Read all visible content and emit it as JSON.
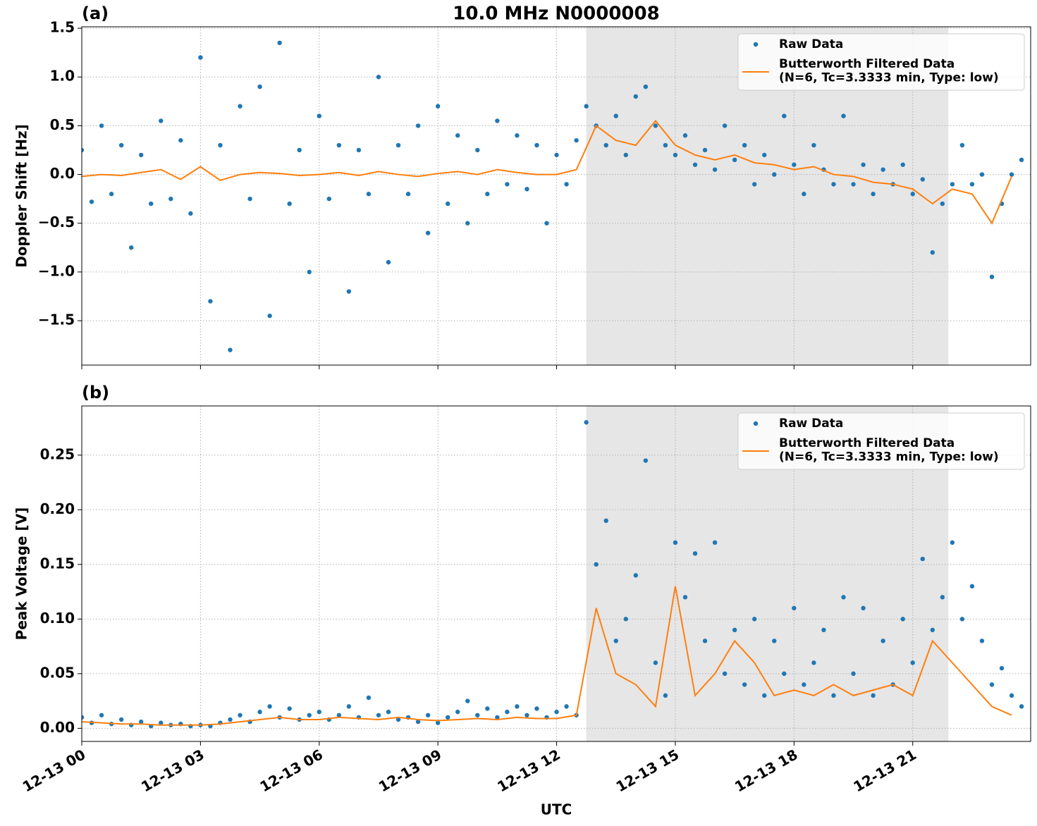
{
  "chart_data": [
    {
      "type": "scatter-line",
      "title": "10.0 MHz N0000008",
      "panel_label": "(a)",
      "ylabel": "Doppler Shift [Hz]",
      "xlim": [
        0,
        23.98
      ],
      "ylim": [
        -1.955,
        1.515
      ],
      "xticks": [
        0,
        3,
        6,
        9,
        12,
        15,
        18,
        21
      ],
      "xtick_labels": false,
      "yticks": [
        {
          "value": -1.5,
          "label": "−1.5"
        },
        {
          "value": -1.0,
          "label": "−1.0"
        },
        {
          "value": -0.5,
          "label": "−0.5"
        },
        {
          "value": 0,
          "label": "0.0"
        },
        0.5,
        {
          "value": 1.0,
          "label": "1.0"
        },
        1.5
      ],
      "grid": true,
      "legend": "upper right",
      "shade": [
        12.75,
        21.9
      ],
      "shade_color": "#e6e6e6",
      "series": [
        {
          "name": "Raw Data",
          "kind": "scatter",
          "color": "#1f77b4",
          "x": [
            0,
            0.25,
            0.5,
            0.75,
            1,
            1.25,
            1.5,
            1.75,
            2,
            2.25,
            2.5,
            2.75,
            3,
            3.25,
            3.5,
            3.75,
            4,
            4.25,
            4.5,
            4.75,
            5,
            5.25,
            5.5,
            5.75,
            6,
            6.25,
            6.5,
            6.75,
            7,
            7.25,
            7.5,
            7.75,
            8,
            8.25,
            8.5,
            8.75,
            9,
            9.25,
            9.5,
            9.75,
            10,
            10.25,
            10.5,
            10.75,
            11,
            11.25,
            11.5,
            11.75,
            12,
            12.25,
            12.5,
            12.75,
            13,
            13.25,
            13.5,
            13.75,
            14,
            14.25,
            14.5,
            14.75,
            15,
            15.25,
            15.5,
            15.75,
            16,
            16.25,
            16.5,
            16.75,
            17,
            17.25,
            17.5,
            17.75,
            18,
            18.25,
            18.5,
            18.75,
            19,
            19.25,
            19.5,
            19.75,
            20,
            20.25,
            20.5,
            20.75,
            21,
            21.25,
            21.5,
            21.75,
            22,
            22.25,
            22.5,
            22.75,
            23,
            23.25,
            23.5,
            23.75
          ],
          "values": [
            0.25,
            -0.28,
            0.5,
            -0.2,
            0.3,
            -0.75,
            0.2,
            -0.3,
            0.55,
            -0.25,
            0.35,
            -0.4,
            1.2,
            -1.3,
            0.3,
            -1.8,
            0.7,
            -0.25,
            0.9,
            -1.45,
            1.35,
            -0.3,
            0.25,
            -1.0,
            0.6,
            -0.25,
            0.3,
            -1.2,
            0.25,
            -0.2,
            1.0,
            -0.9,
            0.3,
            -0.2,
            0.5,
            -0.6,
            0.7,
            -0.3,
            0.4,
            -0.5,
            0.25,
            -0.2,
            0.55,
            -0.1,
            0.4,
            -0.15,
            0.3,
            -0.5,
            0.2,
            -0.1,
            0.35,
            0.7,
            0.5,
            0.3,
            0.6,
            0.2,
            0.8,
            0.9,
            0.5,
            0.3,
            0.2,
            0.4,
            0.1,
            0.25,
            0.05,
            0.5,
            0.15,
            0.3,
            -0.1,
            0.2,
            0.0,
            0.6,
            0.1,
            -0.2,
            0.3,
            0.05,
            -0.1,
            0.6,
            -0.1,
            0.1,
            -0.2,
            0.05,
            -0.1,
            0.1,
            -0.2,
            -0.05,
            -0.8,
            -0.3,
            -0.1,
            0.3,
            -0.1,
            0.0,
            -1.05,
            -0.3,
            0.0,
            0.15
          ]
        },
        {
          "name": "Butterworth Filtered Data\n(N=6, Tc=3.3333 min, Type: low)",
          "kind": "line",
          "color": "#ff7f0e",
          "x": [
            0,
            0.5,
            1,
            1.5,
            2,
            2.5,
            3,
            3.5,
            4,
            4.5,
            5,
            5.5,
            6,
            6.5,
            7,
            7.5,
            8,
            8.5,
            9,
            9.5,
            10,
            10.5,
            11,
            11.5,
            12,
            12.5,
            13,
            13.5,
            14,
            14.5,
            15,
            15.5,
            16,
            16.5,
            17,
            17.5,
            18,
            18.5,
            19,
            19.5,
            20,
            20.5,
            21,
            21.5,
            22,
            22.5,
            23,
            23.5
          ],
          "values": [
            -0.02,
            0.0,
            -0.01,
            0.02,
            0.05,
            -0.05,
            0.08,
            -0.06,
            0.0,
            0.02,
            0.01,
            -0.01,
            0.0,
            0.02,
            -0.01,
            0.03,
            0.0,
            -0.02,
            0.01,
            0.03,
            0.0,
            0.05,
            0.02,
            0.0,
            0.0,
            0.05,
            0.5,
            0.35,
            0.3,
            0.55,
            0.3,
            0.2,
            0.15,
            0.2,
            0.12,
            0.1,
            0.05,
            0.08,
            0.0,
            -0.02,
            -0.08,
            -0.1,
            -0.15,
            -0.3,
            -0.15,
            -0.2,
            -0.5,
            -0.02
          ]
        }
      ]
    },
    {
      "type": "scatter-line",
      "panel_label": "(b)",
      "ylabel": "Peak Voltage [V]",
      "xlabel": "UTC",
      "xlim": [
        0,
        23.98
      ],
      "ylim": [
        -0.012,
        0.295
      ],
      "xticks": [
        {
          "value": 0,
          "label": "12-13 00"
        },
        {
          "value": 3,
          "label": "12-13 03"
        },
        {
          "value": 6,
          "label": "12-13 06"
        },
        {
          "value": 9,
          "label": "12-13 09"
        },
        {
          "value": 12,
          "label": "12-13 12"
        },
        {
          "value": 15,
          "label": "12-13 15"
        },
        {
          "value": 18,
          "label": "12-13 18"
        },
        {
          "value": 21,
          "label": "12-13 21"
        }
      ],
      "xtick_labels": true,
      "yticks": [
        {
          "value": 0,
          "label": "0.00"
        },
        0.05,
        {
          "value": 0.1,
          "label": "0.10"
        },
        0.15,
        {
          "value": 0.2,
          "label": "0.20"
        },
        0.25
      ],
      "grid": true,
      "legend": "upper right",
      "shade": [
        12.75,
        21.9
      ],
      "shade_color": "#e6e6e6",
      "series": [
        {
          "name": "Raw Data",
          "kind": "scatter",
          "color": "#1f77b4",
          "x": [
            0,
            0.25,
            0.5,
            0.75,
            1,
            1.25,
            1.5,
            1.75,
            2,
            2.25,
            2.5,
            2.75,
            3,
            3.25,
            3.5,
            3.75,
            4,
            4.25,
            4.5,
            4.75,
            5,
            5.25,
            5.5,
            5.75,
            6,
            6.25,
            6.5,
            6.75,
            7,
            7.25,
            7.5,
            7.75,
            8,
            8.25,
            8.5,
            8.75,
            9,
            9.25,
            9.5,
            9.75,
            10,
            10.25,
            10.5,
            10.75,
            11,
            11.25,
            11.5,
            11.75,
            12,
            12.25,
            12.5,
            12.75,
            13,
            13.25,
            13.5,
            13.75,
            14,
            14.25,
            14.5,
            14.75,
            15,
            15.25,
            15.5,
            15.75,
            16,
            16.25,
            16.5,
            16.75,
            17,
            17.25,
            17.5,
            17.75,
            18,
            18.25,
            18.5,
            18.75,
            19,
            19.25,
            19.5,
            19.75,
            20,
            20.25,
            20.5,
            20.75,
            21,
            21.25,
            21.5,
            21.75,
            22,
            22.25,
            22.5,
            22.75,
            23,
            23.25,
            23.5,
            23.75
          ],
          "values": [
            0.01,
            0.005,
            0.012,
            0.004,
            0.008,
            0.003,
            0.006,
            0.002,
            0.005,
            0.003,
            0.004,
            0.002,
            0.003,
            0.002,
            0.005,
            0.008,
            0.012,
            0.006,
            0.015,
            0.02,
            0.01,
            0.018,
            0.008,
            0.012,
            0.015,
            0.008,
            0.012,
            0.02,
            0.01,
            0.028,
            0.012,
            0.015,
            0.008,
            0.01,
            0.006,
            0.012,
            0.005,
            0.01,
            0.015,
            0.025,
            0.012,
            0.018,
            0.01,
            0.015,
            0.02,
            0.012,
            0.018,
            0.01,
            0.015,
            0.02,
            0.012,
            0.28,
            0.15,
            0.19,
            0.08,
            0.1,
            0.14,
            0.245,
            0.06,
            0.03,
            0.17,
            0.12,
            0.16,
            0.08,
            0.17,
            0.05,
            0.09,
            0.04,
            0.1,
            0.03,
            0.08,
            0.05,
            0.11,
            0.04,
            0.06,
            0.09,
            0.03,
            0.12,
            0.05,
            0.11,
            0.03,
            0.08,
            0.04,
            0.1,
            0.06,
            0.155,
            0.09,
            0.12,
            0.17,
            0.1,
            0.13,
            0.08,
            0.04,
            0.055,
            0.03,
            0.02
          ]
        },
        {
          "name": "Butterworth Filtered Data\n(N=6, Tc=3.3333 min, Type: low)",
          "kind": "line",
          "color": "#ff7f0e",
          "x": [
            0,
            0.5,
            1,
            1.5,
            2,
            2.5,
            3,
            3.5,
            4,
            4.5,
            5,
            5.5,
            6,
            6.5,
            7,
            7.5,
            8,
            8.5,
            9,
            9.5,
            10,
            10.5,
            11,
            11.5,
            12,
            12.5,
            13,
            13.5,
            14,
            14.5,
            15,
            15.5,
            16,
            16.5,
            17,
            17.5,
            18,
            18.5,
            19,
            19.5,
            20,
            20.5,
            21,
            21.5,
            22,
            22.5,
            23,
            23.5
          ],
          "values": [
            0.006,
            0.005,
            0.004,
            0.004,
            0.003,
            0.003,
            0.003,
            0.004,
            0.006,
            0.008,
            0.01,
            0.008,
            0.008,
            0.01,
            0.009,
            0.008,
            0.01,
            0.008,
            0.007,
            0.008,
            0.009,
            0.008,
            0.01,
            0.009,
            0.009,
            0.012,
            0.11,
            0.05,
            0.04,
            0.02,
            0.13,
            0.03,
            0.05,
            0.08,
            0.06,
            0.03,
            0.035,
            0.03,
            0.04,
            0.03,
            0.035,
            0.04,
            0.03,
            0.08,
            0.06,
            0.04,
            0.02,
            0.012
          ]
        }
      ]
    }
  ]
}
